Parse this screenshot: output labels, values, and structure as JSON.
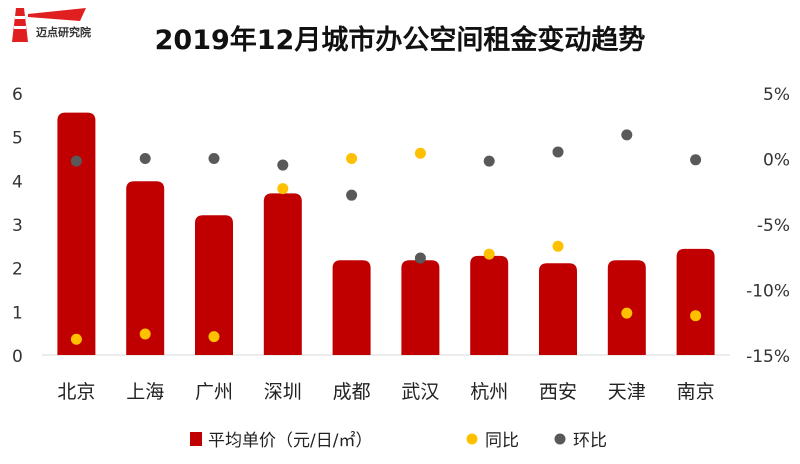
{
  "logo": {
    "text": "迈点研究院"
  },
  "chart_data": {
    "type": "bar",
    "title": "2019年12月城市办公空间租金变动趋势",
    "categories": [
      "北京",
      "上海",
      "广州",
      "深圳",
      "成都",
      "武汉",
      "杭州",
      "西安",
      "天津",
      "南京"
    ],
    "series": [
      {
        "name": "平均单价（元/日/㎡）",
        "type": "bar",
        "axis": "left",
        "color": "#C00000",
        "values": [
          5.55,
          3.98,
          3.2,
          3.7,
          2.17,
          2.17,
          2.27,
          2.1,
          2.17,
          2.43
        ]
      },
      {
        "name": "同比",
        "type": "scatter",
        "axis": "right",
        "color": "#FFC000",
        "values": [
          -13.8,
          -13.4,
          -13.6,
          -2.3,
          0.0,
          0.4,
          -7.3,
          -6.7,
          -11.8,
          -12.0
        ]
      },
      {
        "name": "环比",
        "type": "scatter",
        "axis": "right",
        "color": "#595959",
        "values": [
          -0.2,
          0.0,
          0.0,
          -0.5,
          -2.8,
          -7.6,
          -0.2,
          0.5,
          1.8,
          -0.1
        ]
      }
    ],
    "ylim": [
      0,
      6
    ],
    "yticks": [
      "0",
      "1",
      "2",
      "3",
      "4",
      "5",
      "6"
    ],
    "y2lim": [
      -15,
      5
    ],
    "y2ticks": [
      "-15%",
      "-10%",
      "-5%",
      "0%",
      "5%"
    ],
    "legend": "bottom",
    "grid": false
  }
}
